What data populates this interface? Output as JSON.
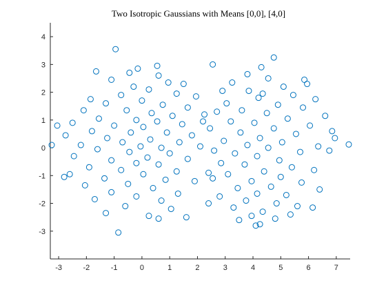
{
  "chart_data": {
    "type": "scatter",
    "title": "Two Isotropic Gaussians with Means [0,0], [4,0]",
    "xlabel": "",
    "ylabel": "",
    "xlim": [
      -3.3,
      7.5
    ],
    "ylim": [
      -4,
      4.5
    ],
    "xticks": [
      -3,
      -2,
      -1,
      0,
      1,
      2,
      3,
      4,
      5,
      6,
      7
    ],
    "yticks": [
      -3,
      -2,
      -1,
      0,
      1,
      2,
      3,
      4
    ],
    "grid": false,
    "legend": "none",
    "marker": "open-circle",
    "color": "#0072BD",
    "series": [
      {
        "mean": [
          0,
          0
        ],
        "points": [
          [
            -0.95,
            3.55
          ],
          [
            0.55,
            2.95
          ],
          [
            -1.65,
            2.75
          ],
          [
            -0.45,
            2.7
          ],
          [
            0.6,
            2.6
          ],
          [
            -1.1,
            2.45
          ],
          [
            0.95,
            2.35
          ],
          [
            -0.3,
            2.2
          ],
          [
            0.25,
            2.1
          ],
          [
            -1.85,
            1.75
          ],
          [
            -0.75,
            1.9
          ],
          [
            1.25,
            1.95
          ],
          [
            -1.3,
            1.6
          ],
          [
            0.0,
            1.7
          ],
          [
            0.75,
            1.55
          ],
          [
            1.65,
            1.45
          ],
          [
            -2.1,
            1.35
          ],
          [
            -0.55,
            1.35
          ],
          [
            0.35,
            1.25
          ],
          [
            1.1,
            1.15
          ],
          [
            -1.55,
            1.05
          ],
          [
            -0.2,
            1.0
          ],
          [
            0.55,
            0.95
          ],
          [
            1.45,
            0.85
          ],
          [
            -2.5,
            0.9
          ],
          [
            -1.0,
            0.8
          ],
          [
            0.05,
            0.75
          ],
          [
            -1.8,
            0.6
          ],
          [
            -0.4,
            0.55
          ],
          [
            0.9,
            0.55
          ],
          [
            1.8,
            0.45
          ],
          [
            -2.75,
            0.45
          ],
          [
            -1.25,
            0.35
          ],
          [
            0.3,
            0.3
          ],
          [
            -0.7,
            0.2
          ],
          [
            1.35,
            0.2
          ],
          [
            -2.2,
            0.1
          ],
          [
            -0.05,
            0.05
          ],
          [
            0.7,
            0.0
          ],
          [
            2.1,
            0.05
          ],
          [
            -3.25,
            0.1
          ],
          [
            -1.6,
            -0.05
          ],
          [
            -0.45,
            -0.15
          ],
          [
            1.0,
            -0.2
          ],
          [
            -2.45,
            -0.3
          ],
          [
            0.2,
            -0.35
          ],
          [
            1.65,
            -0.4
          ],
          [
            -1.1,
            -0.45
          ],
          [
            -0.2,
            -0.55
          ],
          [
            0.6,
            -0.6
          ],
          [
            -1.9,
            -0.7
          ],
          [
            -0.75,
            -0.8
          ],
          [
            1.25,
            -0.85
          ],
          [
            -2.6,
            -0.95
          ],
          [
            0.05,
            -0.95
          ],
          [
            -1.35,
            -1.1
          ],
          [
            0.85,
            -1.15
          ],
          [
            1.9,
            -1.2
          ],
          [
            -0.5,
            -1.3
          ],
          [
            -2.05,
            -1.35
          ],
          [
            0.4,
            -1.45
          ],
          [
            -1.1,
            -1.6
          ],
          [
            1.3,
            -1.65
          ],
          [
            -0.2,
            -1.75
          ],
          [
            -1.7,
            -1.85
          ],
          [
            0.7,
            -1.9
          ],
          [
            -0.6,
            -2.1
          ],
          [
            1.05,
            -2.2
          ],
          [
            -1.3,
            -2.35
          ],
          [
            0.25,
            -2.45
          ],
          [
            0.6,
            -2.55
          ],
          [
            -0.85,
            -3.05
          ],
          [
            1.6,
            -2.5
          ],
          [
            -3.05,
            0.8
          ],
          [
            -2.8,
            -1.05
          ],
          [
            2.25,
            1.2
          ],
          [
            1.5,
            2.3
          ],
          [
            -0.15,
            2.85
          ],
          [
            2.4,
            -0.9
          ],
          [
            1.95,
            1.85
          ]
        ]
      },
      {
        "mean": [
          4,
          0
        ],
        "points": [
          [
            4.75,
            3.25
          ],
          [
            2.55,
            3.0
          ],
          [
            3.8,
            2.65
          ],
          [
            5.85,
            2.45
          ],
          [
            4.3,
            2.9
          ],
          [
            3.25,
            2.35
          ],
          [
            5.1,
            2.2
          ],
          [
            4.55,
            2.5
          ],
          [
            2.9,
            2.05
          ],
          [
            3.85,
            2.05
          ],
          [
            5.45,
            1.9
          ],
          [
            6.25,
            1.75
          ],
          [
            4.2,
            1.8
          ],
          [
            3.05,
            1.6
          ],
          [
            4.9,
            1.55
          ],
          [
            5.8,
            1.45
          ],
          [
            2.7,
            1.3
          ],
          [
            3.6,
            1.35
          ],
          [
            4.5,
            1.25
          ],
          [
            6.6,
            1.15
          ],
          [
            5.25,
            1.05
          ],
          [
            3.2,
            0.95
          ],
          [
            4.05,
            0.9
          ],
          [
            6.05,
            0.8
          ],
          [
            2.45,
            0.7
          ],
          [
            4.75,
            0.7
          ],
          [
            3.55,
            0.55
          ],
          [
            5.55,
            0.5
          ],
          [
            6.95,
            0.35
          ],
          [
            4.25,
            0.35
          ],
          [
            2.95,
            0.25
          ],
          [
            5.05,
            0.2
          ],
          [
            3.8,
            0.1
          ],
          [
            6.35,
            0.05
          ],
          [
            7.45,
            0.12
          ],
          [
            4.55,
            0.0
          ],
          [
            2.6,
            -0.1
          ],
          [
            5.7,
            -0.15
          ],
          [
            3.35,
            -0.2
          ],
          [
            4.15,
            -0.3
          ],
          [
            6.75,
            -0.1
          ],
          [
            4.95,
            -0.45
          ],
          [
            2.85,
            -0.55
          ],
          [
            3.7,
            -0.6
          ],
          [
            5.4,
            -0.7
          ],
          [
            6.2,
            -0.8
          ],
          [
            4.4,
            -0.85
          ],
          [
            3.1,
            -0.95
          ],
          [
            5.0,
            -1.05
          ],
          [
            2.55,
            -1.1
          ],
          [
            3.95,
            -1.2
          ],
          [
            5.75,
            -1.25
          ],
          [
            4.65,
            -1.4
          ],
          [
            3.45,
            -1.45
          ],
          [
            6.4,
            -1.5
          ],
          [
            4.15,
            -1.65
          ],
          [
            5.2,
            -1.7
          ],
          [
            2.8,
            -1.75
          ],
          [
            3.75,
            -1.9
          ],
          [
            4.85,
            -2.0
          ],
          [
            5.6,
            -2.1
          ],
          [
            3.3,
            -2.15
          ],
          [
            4.35,
            -2.3
          ],
          [
            6.15,
            -2.15
          ],
          [
            3.95,
            -2.45
          ],
          [
            4.8,
            -2.55
          ],
          [
            4.1,
            -2.8
          ],
          [
            4.25,
            -2.75
          ],
          [
            2.4,
            -2.0
          ],
          [
            4.35,
            1.95
          ],
          [
            5.95,
            2.3
          ],
          [
            3.5,
            -2.6
          ],
          [
            6.85,
            0.6
          ],
          [
            2.2,
            0.95
          ],
          [
            5.35,
            -2.4
          ]
        ]
      }
    ]
  }
}
